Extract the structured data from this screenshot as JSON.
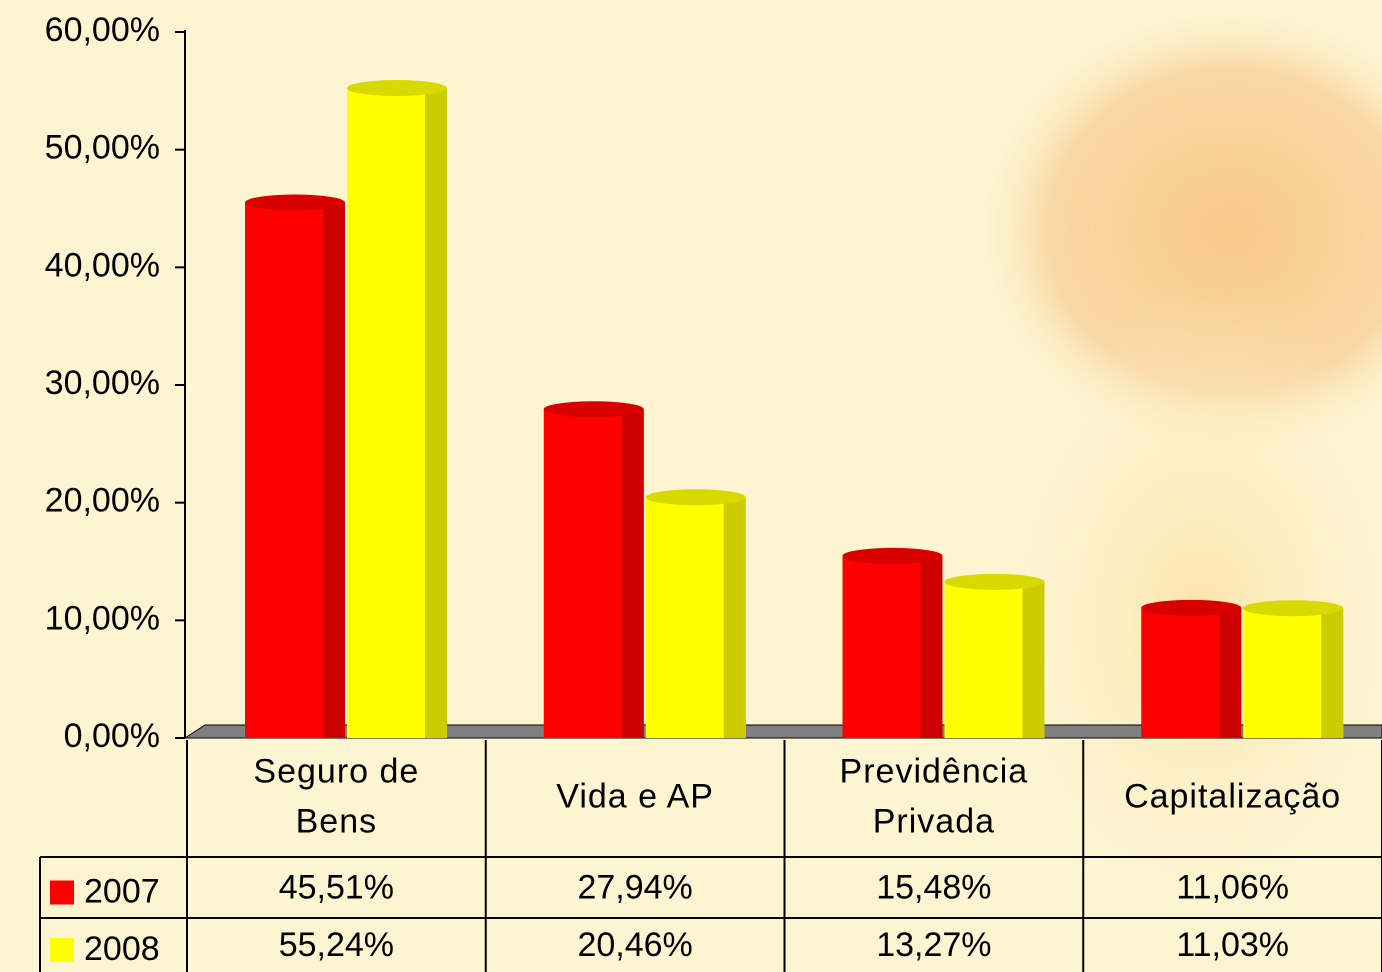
{
  "chart_data": {
    "type": "bar",
    "categories": [
      [
        "Seguro de",
        "Bens"
      ],
      [
        "Vida e AP"
      ],
      [
        "Previdência",
        "Privada"
      ],
      [
        "Capitalização"
      ]
    ],
    "series": [
      {
        "name": "2007",
        "color": "#ff0000",
        "values": [
          45.51,
          27.94,
          15.48,
          11.06
        ],
        "value_labels": [
          "45,51%",
          "27,94%",
          "15,48%",
          "11,06%"
        ]
      },
      {
        "name": "2008",
        "color": "#ffff00",
        "values": [
          55.24,
          20.46,
          13.27,
          11.03
        ],
        "value_labels": [
          "55,24%",
          "20,46%",
          "13,27%",
          "11,03%"
        ]
      }
    ],
    "ylim": [
      0,
      60
    ],
    "yticks": [
      {
        "value": 0,
        "label": "0,00%"
      },
      {
        "value": 10,
        "label": "10,00%"
      },
      {
        "value": 20,
        "label": "20,00%"
      },
      {
        "value": 30,
        "label": "30,00%"
      },
      {
        "value": 40,
        "label": "40,00%"
      },
      {
        "value": 50,
        "label": "50,00%"
      },
      {
        "value": 60,
        "label": "60,00%"
      }
    ]
  }
}
